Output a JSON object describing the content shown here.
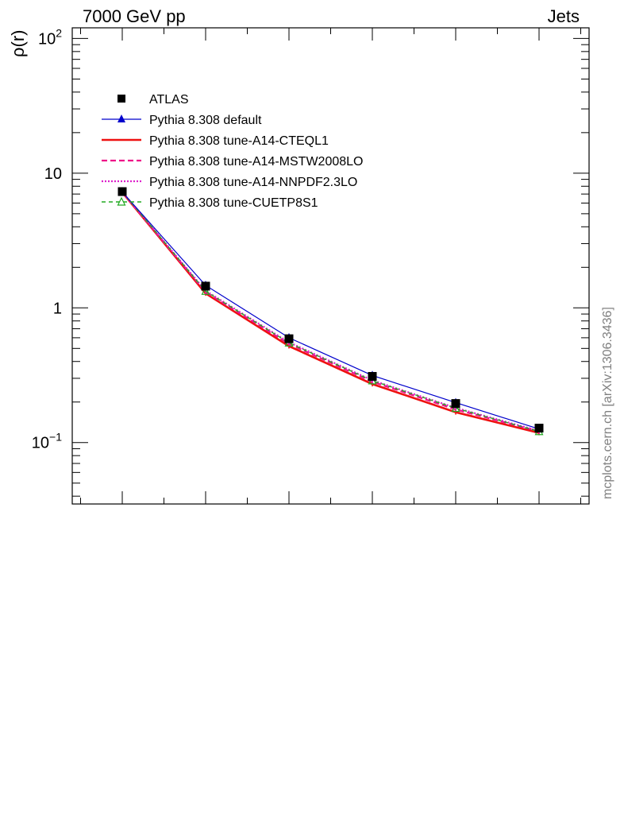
{
  "header": {
    "energy_label": "7000 GeV pp",
    "process_label": "Jets"
  },
  "watermark": "mcplots.cern.ch [arXiv:1306.3436]",
  "chart_data": {
    "type": "line",
    "ylabel": "ρ(r)",
    "xlabel": "",
    "yscale": "log",
    "ylim": [
      0.035,
      120
    ],
    "yticks": [
      {
        "value": 100,
        "label_base": "10",
        "label_exp": "2"
      },
      {
        "value": 10,
        "label_base": "10",
        "label_exp": ""
      },
      {
        "value": 1,
        "label_base": "1",
        "label_exp": ""
      },
      {
        "value": 0.1,
        "label_base": "10",
        "label_exp": "−1"
      }
    ],
    "x": [
      1,
      2,
      3,
      4,
      5,
      6
    ],
    "xlim": [
      0.4,
      6.6
    ],
    "legend_position": "top-left",
    "series": [
      {
        "name": "ATLAS",
        "style": "data",
        "color": "#000000",
        "values": [
          7.3,
          1.45,
          0.59,
          0.31,
          0.195,
          0.128
        ]
      },
      {
        "name": "Pythia 8.308 default",
        "style": "line-triangle",
        "color": "#0000cc",
        "values": [
          7.25,
          1.47,
          0.6,
          0.315,
          0.198,
          0.126
        ]
      },
      {
        "name": "Pythia 8.308 tune-A14-CTEQL1",
        "style": "solid-thick",
        "color": "#ee1111",
        "values": [
          7.2,
          1.28,
          0.52,
          0.272,
          0.168,
          0.118
        ]
      },
      {
        "name": "Pythia 8.308 tune-A14-MSTW2008LO",
        "style": "dashed",
        "color": "#ee1188",
        "values": [
          7.22,
          1.31,
          0.54,
          0.283,
          0.176,
          0.121
        ]
      },
      {
        "name": "Pythia 8.308 tune-A14-NNPDF2.3LO",
        "style": "dotted",
        "color": "#dd22cc",
        "values": [
          7.24,
          1.34,
          0.555,
          0.29,
          0.181,
          0.122
        ]
      },
      {
        "name": "Pythia 8.308 tune-CUETP8S1",
        "style": "dashed-open-triangle",
        "color": "#22aa22",
        "values": [
          7.26,
          1.33,
          0.55,
          0.288,
          0.18,
          0.121
        ]
      }
    ]
  }
}
